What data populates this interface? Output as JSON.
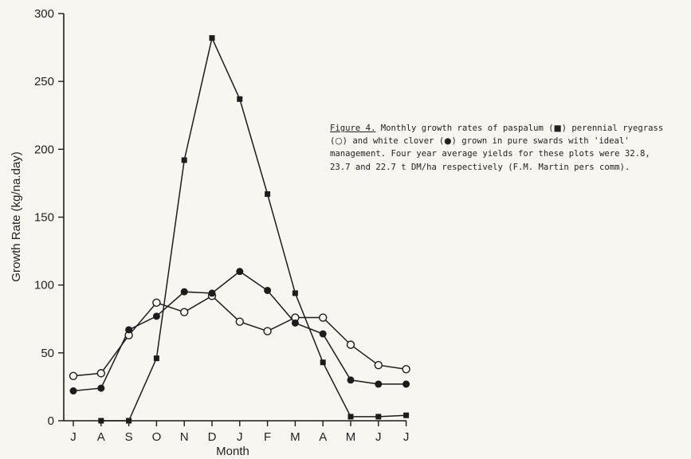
{
  "chart_data": {
    "type": "line",
    "title": "",
    "xlabel": "Month",
    "ylabel": "Growth Rate (kg/na.day)",
    "categories": [
      "J",
      "A",
      "S",
      "O",
      "N",
      "D",
      "J",
      "F",
      "M",
      "A",
      "M",
      "J",
      "J"
    ],
    "ylim": [
      0,
      300
    ],
    "yticks": [
      0,
      50,
      100,
      150,
      200,
      250,
      300
    ],
    "grid": false,
    "legend": "none",
    "series": [
      {
        "marker": "filled-square",
        "values": [
          null,
          0,
          0,
          46,
          192,
          282,
          237,
          167,
          94,
          43,
          3,
          3,
          4
        ]
      },
      {
        "marker": "open-circle",
        "values": [
          33,
          35,
          63,
          87,
          80,
          92,
          73,
          66,
          76,
          76,
          56,
          41,
          38
        ]
      },
      {
        "marker": "filled-circle",
        "values": [
          22,
          24,
          67,
          77,
          95,
          94,
          110,
          96,
          72,
          64,
          30,
          27,
          27
        ]
      }
    ]
  },
  "caption": {
    "figure_label": "Figure 4.",
    "part1": " Monthly growth rates of paspalum (",
    "sym_square": "■",
    "part2": ") perennial ryegrass (",
    "sym_open": "○",
    "part3": ") and white clover (",
    "sym_filled": "●",
    "part4": ") grown in pure swards with 'ideal' management. Four year average yields for these plots were 32.8, 23.7 and 22.7 t DM/ha respectively (F.M. Martin pers comm)."
  }
}
